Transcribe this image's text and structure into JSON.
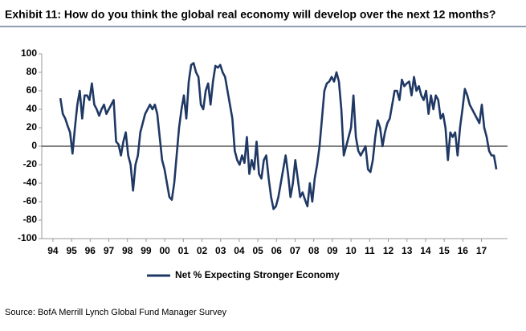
{
  "chart_data": {
    "type": "line",
    "title": "Exhibit 11: How do you think the global real economy will develop over the next 12 months?",
    "source": "Source: BofA Merrill Lynch Global Fund Manager Survey",
    "x": [
      1994.9,
      1995.03,
      1995.16,
      1995.29,
      1995.42,
      1995.55,
      1995.68,
      1995.81,
      1995.94,
      1996.07,
      1996.2,
      1996.33,
      1996.46,
      1996.59,
      1996.72,
      1996.85,
      1996.98,
      1997.11,
      1997.24,
      1997.37,
      1997.5,
      1997.63,
      1997.76,
      1997.89,
      1998.02,
      1998.15,
      1998.28,
      1998.41,
      1998.54,
      1998.67,
      1998.8,
      1998.93,
      1999.06,
      1999.19,
      1999.32,
      1999.45,
      1999.58,
      1999.71,
      1999.84,
      1999.97,
      2000.1,
      2000.23,
      2000.36,
      2000.49,
      2000.62,
      2000.75,
      2000.88,
      2001.01,
      2001.14,
      2001.27,
      2001.4,
      2001.53,
      2001.66,
      2001.79,
      2001.92,
      2002.05,
      2002.18,
      2002.31,
      2002.44,
      2002.57,
      2002.7,
      2002.83,
      2002.96,
      2003.09,
      2003.22,
      2003.35,
      2003.48,
      2003.61,
      2003.74,
      2003.87,
      2004,
      2004.13,
      2004.26,
      2004.39,
      2004.52,
      2004.65,
      2004.78,
      2004.91,
      2005.04,
      2005.17,
      2005.3,
      2005.43,
      2005.56,
      2005.69,
      2005.82,
      2005.95,
      2006.08,
      2006.21,
      2006.34,
      2006.47,
      2006.6,
      2006.73,
      2006.86,
      2006.99,
      2007.12,
      2007.25,
      2007.38,
      2007.51,
      2007.64,
      2007.77,
      2007.9,
      2008.03,
      2008.16,
      2008.29,
      2008.42,
      2008.55,
      2008.68,
      2008.81,
      2008.94,
      2009.07,
      2009.2,
      2009.33,
      2009.46,
      2009.59,
      2009.72,
      2009.85,
      2009.98,
      2010.11,
      2010.24,
      2010.37,
      2010.5,
      2010.63,
      2010.76,
      2010.89,
      2011.02,
      2011.15,
      2011.28,
      2011.41,
      2011.54,
      2011.67,
      2011.8,
      2011.93,
      2012.06,
      2012.19,
      2012.32,
      2012.45,
      2012.58,
      2012.71,
      2012.84,
      2012.97,
      2013.1,
      2013.23,
      2013.36,
      2013.49,
      2013.62,
      2013.75,
      2013.88,
      2014.01,
      2014.14,
      2014.27,
      2014.4,
      2014.53,
      2014.66,
      2014.79,
      2014.92,
      2015.05,
      2015.18,
      2015.31,
      2015.44,
      2015.57,
      2015.7,
      2015.83,
      2015.96,
      2016.09,
      2016.22,
      2016.35,
      2016.48,
      2016.61,
      2016.74,
      2016.87,
      2017,
      2017.13,
      2017.26,
      2017.39,
      2017.52,
      2017.65,
      2017.78,
      2017.91,
      2018.04,
      2018.17,
      2018.3
    ],
    "series": [
      {
        "name": "Net % Expecting Stronger Economy",
        "color": "#1f3864",
        "values": [
          52,
          35,
          30,
          22,
          15,
          -8,
          20,
          45,
          60,
          30,
          55,
          55,
          50,
          68,
          45,
          40,
          33,
          40,
          45,
          35,
          40,
          45,
          50,
          5,
          2,
          -10,
          5,
          15,
          -10,
          -20,
          -48,
          -20,
          -10,
          15,
          25,
          35,
          40,
          45,
          40,
          45,
          35,
          10,
          -15,
          -25,
          -40,
          -55,
          -58,
          -40,
          -10,
          20,
          40,
          55,
          30,
          70,
          88,
          90,
          80,
          75,
          45,
          40,
          60,
          68,
          45,
          70,
          87,
          85,
          88,
          80,
          75,
          60,
          45,
          30,
          -5,
          -15,
          -20,
          -10,
          -18,
          10,
          -30,
          -15,
          -25,
          5,
          -30,
          -35,
          -15,
          -10,
          -35,
          -55,
          -68,
          -65,
          -55,
          -40,
          -25,
          -10,
          -30,
          -55,
          -40,
          -15,
          -35,
          -55,
          -50,
          -58,
          -65,
          -40,
          -60,
          -35,
          -20,
          0,
          30,
          60,
          68,
          70,
          75,
          70,
          80,
          70,
          40,
          -10,
          0,
          10,
          20,
          55,
          10,
          -5,
          -10,
          -5,
          0,
          -25,
          -28,
          -15,
          10,
          28,
          20,
          0,
          15,
          25,
          30,
          45,
          60,
          60,
          50,
          72,
          65,
          68,
          70,
          55,
          75,
          60,
          65,
          55,
          50,
          60,
          35,
          55,
          40,
          55,
          50,
          30,
          35,
          20,
          -15,
          15,
          10,
          15,
          -10,
          20,
          40,
          62,
          55,
          45,
          40,
          35,
          30,
          25,
          45,
          20,
          10,
          -5,
          -10,
          -10,
          -25
        ]
      }
    ],
    "xlim": [
      1993.9,
      2018.9
    ],
    "xticks": [
      {
        "value": 1994.5,
        "label": "94"
      },
      {
        "value": 1995.5,
        "label": "95"
      },
      {
        "value": 1996.5,
        "label": "96"
      },
      {
        "value": 1997.5,
        "label": "97"
      },
      {
        "value": 1998.5,
        "label": "98"
      },
      {
        "value": 1999.5,
        "label": "99"
      },
      {
        "value": 2000.5,
        "label": "00"
      },
      {
        "value": 2001.5,
        "label": "01"
      },
      {
        "value": 2002.5,
        "label": "02"
      },
      {
        "value": 2003.5,
        "label": "03"
      },
      {
        "value": 2004.5,
        "label": "04"
      },
      {
        "value": 2005.5,
        "label": "05"
      },
      {
        "value": 2006.5,
        "label": "06"
      },
      {
        "value": 2007.5,
        "label": "07"
      },
      {
        "value": 2008.5,
        "label": "08"
      },
      {
        "value": 2009.5,
        "label": "09"
      },
      {
        "value": 2010.5,
        "label": "10"
      },
      {
        "value": 2011.5,
        "label": "11"
      },
      {
        "value": 2012.5,
        "label": "12"
      },
      {
        "value": 2013.5,
        "label": "13"
      },
      {
        "value": 2014.5,
        "label": "14"
      },
      {
        "value": 2015.5,
        "label": "15"
      },
      {
        "value": 2016.5,
        "label": "16"
      },
      {
        "value": 2017.5,
        "label": "17"
      }
    ],
    "ylim": [
      -100,
      100
    ],
    "yticks": [
      -100,
      -80,
      -60,
      -40,
      -20,
      0,
      20,
      40,
      60,
      80,
      100
    ],
    "zero_line": true,
    "legend": "bottom"
  }
}
